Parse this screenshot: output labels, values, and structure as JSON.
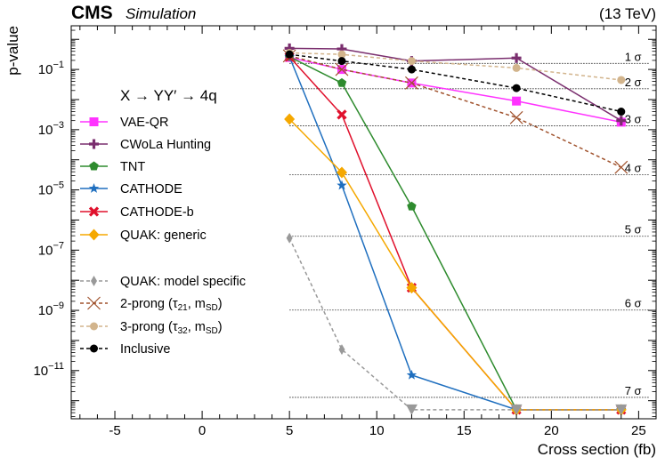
{
  "header": {
    "experiment": "CMS",
    "status": "Simulation",
    "energy": "(13 TeV)"
  },
  "chart_data": {
    "type": "line",
    "xlabel": "Cross section (fb)",
    "ylabel": "p-value",
    "xlim": [
      -7.5,
      26
    ],
    "ylim_log10": [
      -12.6,
      0.45
    ],
    "yscale": "log",
    "x_ticks": [
      -5,
      0,
      5,
      10,
      15,
      20,
      25
    ],
    "x_tick_labels": [
      "-5",
      "0",
      "5",
      "10",
      "15",
      "20",
      "25"
    ],
    "y_ticks_log10": [
      -1,
      -3,
      -5,
      -7,
      -9,
      -11
    ],
    "y_tick_labels": [
      {
        "base": "10",
        "exp": "−1"
      },
      {
        "base": "10",
        "exp": "−3"
      },
      {
        "base": "10",
        "exp": "−5"
      },
      {
        "base": "10",
        "exp": "−7"
      },
      {
        "base": "10",
        "exp": "−9"
      },
      {
        "base": "10",
        "exp": "−11"
      }
    ],
    "significance_lines": [
      {
        "label": "1 σ",
        "log10p": -0.8
      },
      {
        "label": "2 σ",
        "log10p": -1.64
      },
      {
        "label": "3 σ",
        "log10p": -2.87
      },
      {
        "label": "4 σ",
        "log10p": -4.5
      },
      {
        "label": "5 σ",
        "log10p": -6.54
      },
      {
        "label": "6 σ",
        "log10p": -8.99
      },
      {
        "label": "7 σ",
        "log10p": -11.89
      }
    ],
    "legend_title": "X → YY′ → 4q",
    "legend_position": "upper-left",
    "series": [
      {
        "name": "VAE-QR",
        "color": "#ff33ff",
        "marker": "square",
        "dash": "solid",
        "x": [
          5,
          8,
          12,
          18,
          24
        ],
        "log10p": [
          -0.6,
          -1.0,
          -1.45,
          -2.05,
          -2.75
        ]
      },
      {
        "name": "CWoLa Hunting",
        "color": "#7a2e6e",
        "marker": "plus",
        "dash": "solid",
        "x": [
          5,
          8,
          12,
          18,
          24
        ],
        "log10p": [
          -0.3,
          -0.32,
          -0.72,
          -0.62,
          -2.7
        ]
      },
      {
        "name": "TNT",
        "color": "#2e8b2e",
        "marker": "pentagon",
        "dash": "solid",
        "x": [
          5,
          8,
          12,
          18,
          24
        ],
        "log10p": [
          -0.58,
          -1.45,
          -5.55,
          -12.3,
          -12.3
        ]
      },
      {
        "name": "CATHODE",
        "color": "#1f6fbf",
        "marker": "star",
        "dash": "solid",
        "x": [
          5,
          8,
          12,
          18,
          24
        ],
        "log10p": [
          -0.58,
          -4.85,
          -11.15,
          -12.3,
          -12.3
        ]
      },
      {
        "name": "CATHODE-b",
        "color": "#e0102c",
        "marker": "x-bold",
        "dash": "solid",
        "x": [
          5,
          8,
          12,
          18,
          24
        ],
        "log10p": [
          -0.58,
          -2.5,
          -8.25,
          -12.3,
          -12.3
        ]
      },
      {
        "name": "QUAK: generic",
        "color": "#f5a800",
        "marker": "diamond",
        "dash": "solid",
        "x": [
          5,
          8,
          12,
          18,
          24
        ],
        "log10p": [
          -2.65,
          -4.42,
          -8.25,
          -12.3,
          -12.3
        ]
      },
      {
        "name": "QUAK: model specific",
        "color": "#999999",
        "marker": "thin-diamond",
        "dash": "dashed",
        "x": [
          5,
          8,
          12,
          18,
          24
        ],
        "log10p": [
          -6.6,
          -10.3,
          -12.3,
          -12.3,
          -12.3
        ],
        "tail_marker": "triangle-down"
      },
      {
        "name": "2-prong (τ21, mSD)",
        "color": "#a0522d",
        "marker": "x-thin",
        "dash": "dashed",
        "x": [
          5,
          8,
          12,
          18,
          24
        ],
        "log10p": [
          -0.55,
          -1.0,
          -1.45,
          -2.6,
          -4.25
        ]
      },
      {
        "name": "3-prong (τ32, mSD)",
        "color": "#d2b48c",
        "marker": "circle",
        "dash": "dashed",
        "x": [
          5,
          8,
          12,
          18,
          24
        ],
        "log10p": [
          -0.45,
          -0.5,
          -0.72,
          -0.95,
          -1.35
        ]
      },
      {
        "name": "Inclusive",
        "color": "#000000",
        "marker": "circle",
        "dash": "dashed",
        "x": [
          5,
          8,
          12,
          18,
          24
        ],
        "log10p": [
          -0.5,
          -0.72,
          -1.0,
          -1.62,
          -2.4
        ]
      }
    ]
  },
  "legend_items": [
    {
      "label": "VAE-QR"
    },
    {
      "label": "CWoLa Hunting"
    },
    {
      "label": "TNT"
    },
    {
      "label": "CATHODE"
    },
    {
      "label": "CATHODE-b"
    },
    {
      "label": "QUAK: generic"
    },
    {
      "label": "QUAK: model specific"
    },
    {
      "label": "2-prong (τ",
      "sub1": "21",
      "mid": ", m",
      "sub2": "SD",
      "end": ")"
    },
    {
      "label": "3-prong (τ",
      "sub1": "32",
      "mid": ", m",
      "sub2": "SD",
      "end": ")"
    },
    {
      "label": "Inclusive"
    }
  ]
}
